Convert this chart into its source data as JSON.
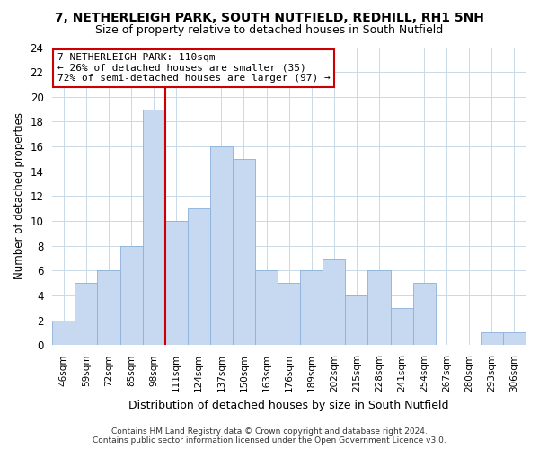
{
  "title": "7, NETHERLEIGH PARK, SOUTH NUTFIELD, REDHILL, RH1 5NH",
  "subtitle": "Size of property relative to detached houses in South Nutfield",
  "xlabel": "Distribution of detached houses by size in South Nutfield",
  "ylabel": "Number of detached properties",
  "categories": [
    "46sqm",
    "59sqm",
    "72sqm",
    "85sqm",
    "98sqm",
    "111sqm",
    "124sqm",
    "137sqm",
    "150sqm",
    "163sqm",
    "176sqm",
    "189sqm",
    "202sqm",
    "215sqm",
    "228sqm",
    "241sqm",
    "254sqm",
    "267sqm",
    "280sqm",
    "293sqm",
    "306sqm"
  ],
  "values": [
    2,
    5,
    6,
    8,
    19,
    10,
    11,
    16,
    15,
    6,
    5,
    6,
    7,
    4,
    6,
    3,
    5,
    0,
    0,
    1,
    1
  ],
  "bar_color": "#c6d9f0",
  "bar_edge_color": "#8ab0d8",
  "highlight_index": 4,
  "highlight_line_color": "#cc0000",
  "ylim": [
    0,
    24
  ],
  "yticks": [
    0,
    2,
    4,
    6,
    8,
    10,
    12,
    14,
    16,
    18,
    20,
    22,
    24
  ],
  "annotation_title": "7 NETHERLEIGH PARK: 110sqm",
  "annotation_line1": "← 26% of detached houses are smaller (35)",
  "annotation_line2": "72% of semi-detached houses are larger (97) →",
  "annotation_box_color": "#ffffff",
  "annotation_box_edge": "#cc0000",
  "grid_color": "#c8d8e8",
  "background_color": "#ffffff",
  "footer1": "Contains HM Land Registry data © Crown copyright and database right 2024.",
  "footer2": "Contains public sector information licensed under the Open Government Licence v3.0."
}
